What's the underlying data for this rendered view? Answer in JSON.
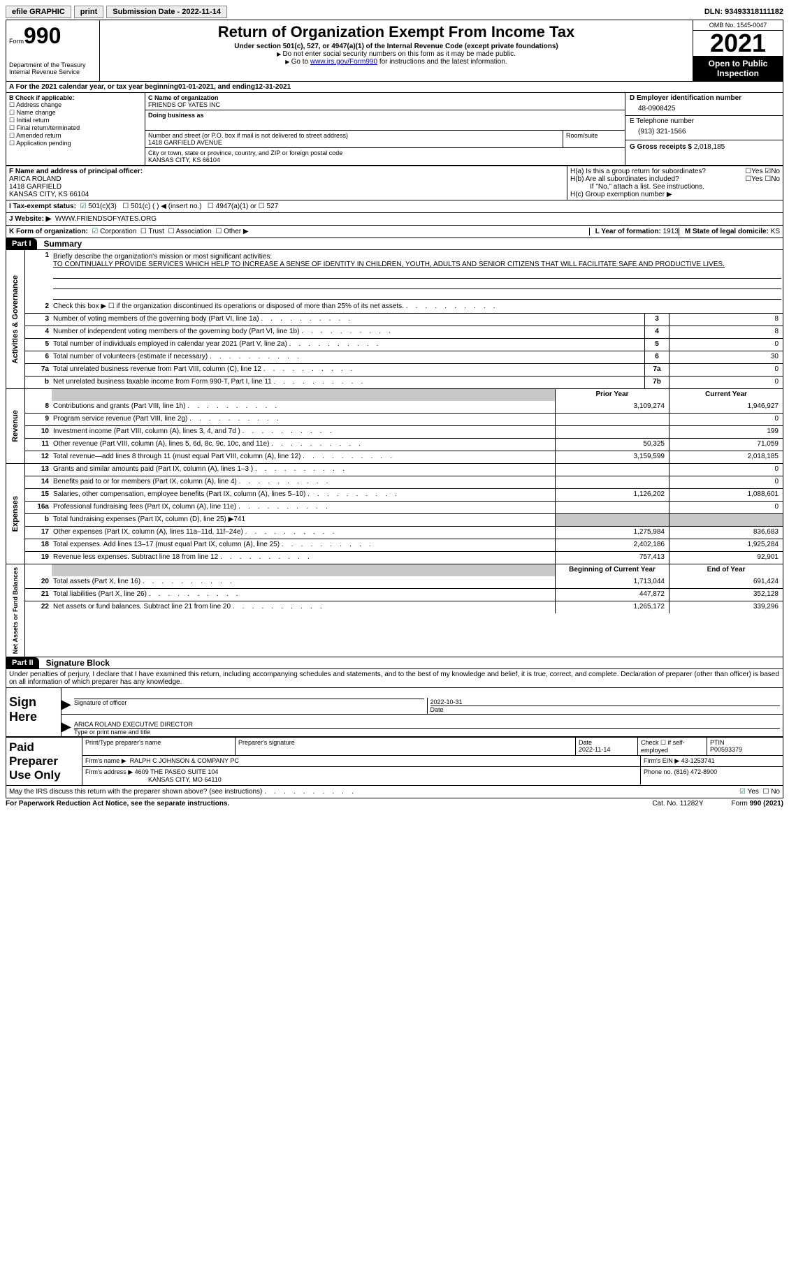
{
  "topbar": {
    "efile": "efile GRAPHIC",
    "print": "print",
    "subdate_label": "Submission Date - ",
    "subdate": "2022-11-14",
    "dln_label": "DLN: ",
    "dln": "93493318111182"
  },
  "header": {
    "form_label": "Form",
    "form_num": "990",
    "dept": "Department of the Treasury",
    "irs": "Internal Revenue Service",
    "title": "Return of Organization Exempt From Income Tax",
    "subtitle": "Under section 501(c), 527, or 4947(a)(1) of the Internal Revenue Code (except private foundations)",
    "note1": "Do not enter social security numbers on this form as it may be made public.",
    "note2_pre": "Go to ",
    "note2_link": "www.irs.gov/Form990",
    "note2_post": " for instructions and the latest information.",
    "omb": "OMB No. 1545-0047",
    "year": "2021",
    "open": "Open to Public Inspection"
  },
  "lineA": {
    "pre": "A For the 2021 calendar year, or tax year beginning ",
    "begin": "01-01-2021",
    "mid": "   , and ending ",
    "end": "12-31-2021"
  },
  "colB": {
    "hdr": "B Check if applicable:",
    "items": [
      "Address change",
      "Name change",
      "Initial return",
      "Final return/terminated",
      "Amended return",
      "Application pending"
    ]
  },
  "colC": {
    "name_lbl": "C Name of organization",
    "name": "FRIENDS OF YATES INC",
    "dba_lbl": "Doing business as",
    "street_lbl": "Number and street (or P.O. box if mail is not delivered to street address)",
    "room_lbl": "Room/suite",
    "street": "1418 GARFIELD AVENUE",
    "city_lbl": "City or town, state or province, country, and ZIP or foreign postal code",
    "city": "KANSAS CITY, KS  66104"
  },
  "colD": {
    "ein_lbl": "D Employer identification number",
    "ein": "48-0908425",
    "tel_lbl": "E Telephone number",
    "tel": "(913) 321-1566",
    "gross_lbl": "G Gross receipts $ ",
    "gross": "2,018,185"
  },
  "sectF": {
    "f_lbl": "F Name and address of principal officer:",
    "f_name": "ARICA ROLAND",
    "f_addr1": "1418 GARFIELD",
    "f_addr2": "KANSAS CITY, KS  66104",
    "ha": "H(a)  Is this a group return for subordinates?",
    "hb": "H(b)  Are all subordinates included?",
    "hb_note": "If \"No,\" attach a list. See instructions.",
    "hc": "H(c)  Group exemption number ▶",
    "yes": "Yes",
    "no": "No"
  },
  "taxexempt": {
    "lbl": "I   Tax-exempt status:",
    "o1": "501(c)(3)",
    "o2": "501(c) (  ) ◀ (insert no.)",
    "o3": "4947(a)(1) or",
    "o4": "527"
  },
  "website": {
    "lbl": "J   Website: ▶",
    "val": "WWW.FRIENDSOFYATES.ORG"
  },
  "korg": {
    "lbl": "K Form of organization:",
    "o1": "Corporation",
    "o2": "Trust",
    "o3": "Association",
    "o4": "Other ▶",
    "l_lbl": "L Year of formation: ",
    "l_val": "1913",
    "m_lbl": "M State of legal domicile: ",
    "m_val": "KS"
  },
  "part1": {
    "num": "Part I",
    "title": "Summary"
  },
  "mission": {
    "num": "1",
    "lbl": "Briefly describe the organization's mission or most significant activities:",
    "txt": "TO CONTINUALLY PROVIDE SERVICES WHICH HELP TO INCREASE A SENSE OF IDENTITY IN CHILDREN, YOUTH, ADULTS AND SENIOR CITIZENS THAT WILL FACILITATE SAFE AND PRODUCTIVE LIVES."
  },
  "side": {
    "ag": "Activities & Governance",
    "rev": "Revenue",
    "exp": "Expenses",
    "na": "Net Assets or Fund Balances"
  },
  "lines_ag": [
    {
      "n": "2",
      "t": "Check this box ▶ ☐  if the organization discontinued its operations or disposed of more than 25% of its net assets."
    },
    {
      "n": "3",
      "t": "Number of voting members of the governing body (Part VI, line 1a)",
      "b": "3",
      "v": "8"
    },
    {
      "n": "4",
      "t": "Number of independent voting members of the governing body (Part VI, line 1b)",
      "b": "4",
      "v": "8"
    },
    {
      "n": "5",
      "t": "Total number of individuals employed in calendar year 2021 (Part V, line 2a)",
      "b": "5",
      "v": "0"
    },
    {
      "n": "6",
      "t": "Total number of volunteers (estimate if necessary)",
      "b": "6",
      "v": "30"
    },
    {
      "n": "7a",
      "t": "Total unrelated business revenue from Part VIII, column (C), line 12",
      "b": "7a",
      "v": "0"
    },
    {
      "n": "b",
      "t": "Net unrelated business taxable income from Form 990-T, Part I, line 11",
      "b": "7b",
      "v": "0"
    }
  ],
  "colhdrs": {
    "py": "Prior Year",
    "cy": "Current Year",
    "by": "Beginning of Current Year",
    "ey": "End of Year"
  },
  "lines_rev": [
    {
      "n": "8",
      "t": "Contributions and grants (Part VIII, line 1h)",
      "p": "3,109,274",
      "c": "1,946,927"
    },
    {
      "n": "9",
      "t": "Program service revenue (Part VIII, line 2g)",
      "p": "",
      "c": "0"
    },
    {
      "n": "10",
      "t": "Investment income (Part VIII, column (A), lines 3, 4, and 7d )",
      "p": "",
      "c": "199"
    },
    {
      "n": "11",
      "t": "Other revenue (Part VIII, column (A), lines 5, 6d, 8c, 9c, 10c, and 11e)",
      "p": "50,325",
      "c": "71,059"
    },
    {
      "n": "12",
      "t": "Total revenue—add lines 8 through 11 (must equal Part VIII, column (A), line 12)",
      "p": "3,159,599",
      "c": "2,018,185"
    }
  ],
  "lines_exp": [
    {
      "n": "13",
      "t": "Grants and similar amounts paid (Part IX, column (A), lines 1–3 )",
      "p": "",
      "c": "0"
    },
    {
      "n": "14",
      "t": "Benefits paid to or for members (Part IX, column (A), line 4)",
      "p": "",
      "c": "0"
    },
    {
      "n": "15",
      "t": "Salaries, other compensation, employee benefits (Part IX, column (A), lines 5–10)",
      "p": "1,126,202",
      "c": "1,088,601"
    },
    {
      "n": "16a",
      "t": "Professional fundraising fees (Part IX, column (A), line 11e)",
      "p": "",
      "c": "0"
    },
    {
      "n": "b",
      "t": "Total fundraising expenses (Part IX, column (D), line 25) ▶741",
      "grey": true
    },
    {
      "n": "17",
      "t": "Other expenses (Part IX, column (A), lines 11a–11d, 11f–24e)",
      "p": "1,275,984",
      "c": "836,683"
    },
    {
      "n": "18",
      "t": "Total expenses. Add lines 13–17 (must equal Part IX, column (A), line 25)",
      "p": "2,402,186",
      "c": "1,925,284"
    },
    {
      "n": "19",
      "t": "Revenue less expenses. Subtract line 18 from line 12",
      "p": "757,413",
      "c": "92,901"
    }
  ],
  "lines_na": [
    {
      "n": "20",
      "t": "Total assets (Part X, line 16)",
      "p": "1,713,044",
      "c": "691,424"
    },
    {
      "n": "21",
      "t": "Total liabilities (Part X, line 26)",
      "p": "447,872",
      "c": "352,128"
    },
    {
      "n": "22",
      "t": "Net assets or fund balances. Subtract line 21 from line 20",
      "p": "1,265,172",
      "c": "339,296"
    }
  ],
  "part2": {
    "num": "Part II",
    "title": "Signature Block"
  },
  "penalty": "Under penalties of perjury, I declare that I have examined this return, including accompanying schedules and statements, and to the best of my knowledge and belief, it is true, correct, and complete. Declaration of preparer (other than officer) is based on all information of which preparer has any knowledge.",
  "sign": {
    "here": "Sign Here",
    "sig_lbl": "Signature of officer",
    "date_lbl": "Date",
    "date": "2022-10-31",
    "name": "ARICA ROLAND  EXECUTIVE DIRECTOR",
    "name_lbl": "Type or print name and title"
  },
  "prep": {
    "lbl": "Paid Preparer Use Only",
    "c1": "Print/Type preparer's name",
    "c2": "Preparer's signature",
    "c3_lbl": "Date",
    "c3": "2022-11-14",
    "c4": "Check ☐ if self-employed",
    "c5_lbl": "PTIN",
    "c5": "P00593379",
    "firm_lbl": "Firm's name    ▶",
    "firm": "RALPH C JOHNSON & COMPANY PC",
    "ein_lbl": "Firm's EIN ▶ ",
    "ein": "43-1253741",
    "addr_lbl": "Firm's address ▶",
    "addr1": "4609 THE PASEO SUITE 104",
    "addr2": "KANSAS CITY, MO  64110",
    "ph_lbl": "Phone no. ",
    "ph": "(816) 472-8900"
  },
  "discuss": {
    "q": "May the IRS discuss this return with the preparer shown above? (see instructions)",
    "yes": "Yes",
    "no": "No"
  },
  "footer": {
    "l": "For Paperwork Reduction Act Notice, see the separate instructions.",
    "m": "Cat. No. 11282Y",
    "r": "Form 990 (2021)"
  }
}
